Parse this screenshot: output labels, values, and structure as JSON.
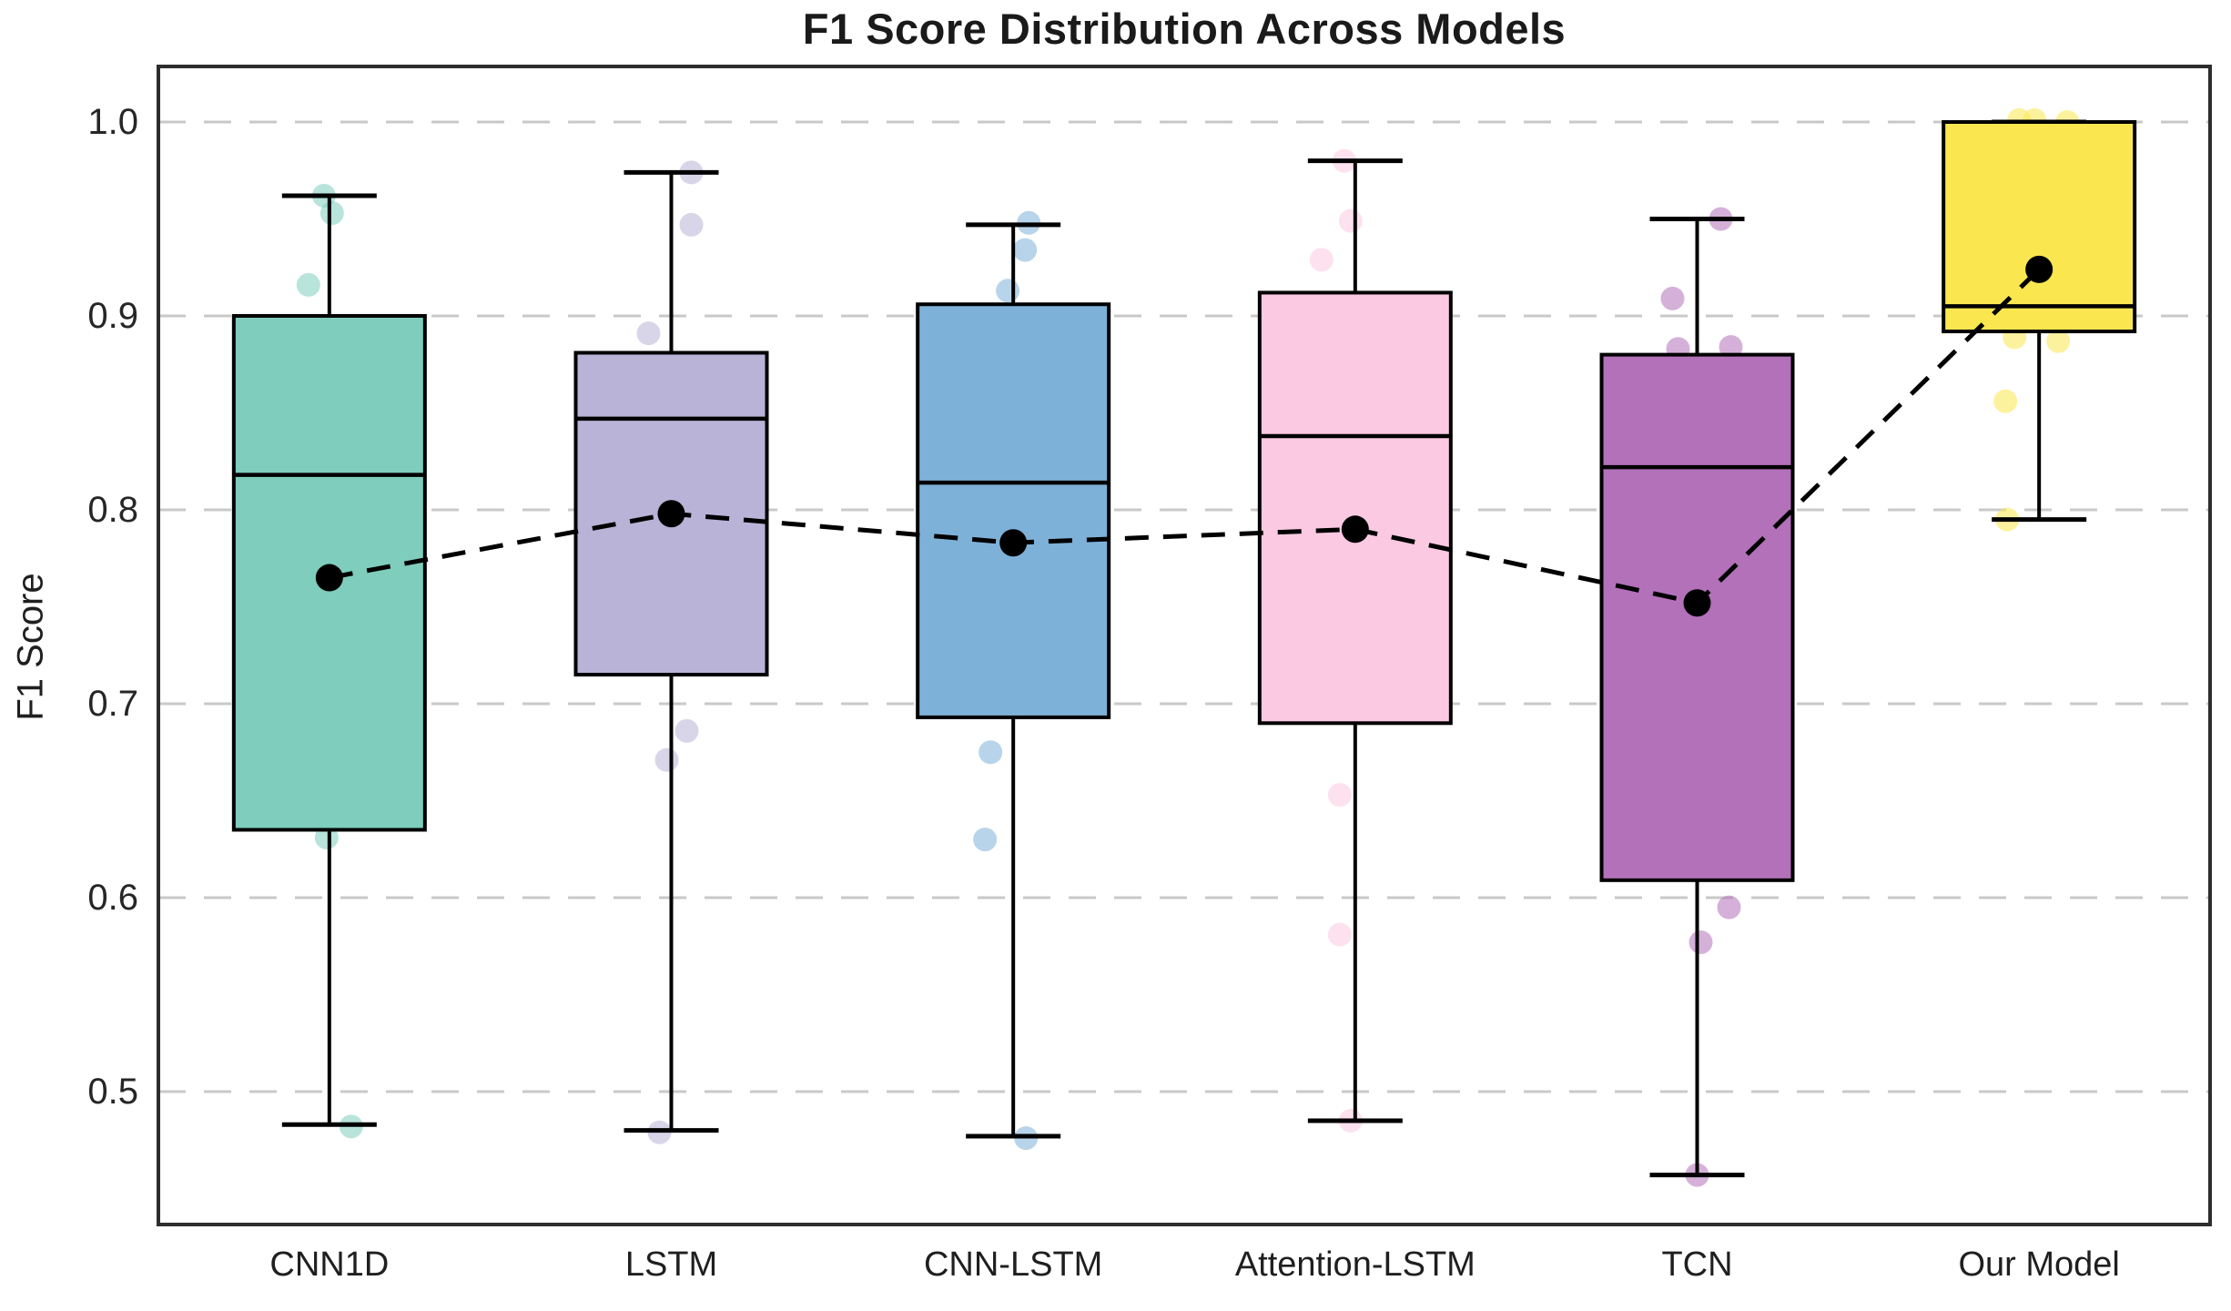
{
  "title": "F1 Score Distribution Across Models",
  "chart_data": {
    "type": "box",
    "title": "F1 Score Distribution Across Models",
    "xlabel": "",
    "ylabel": "F1 Score",
    "categories": [
      "CNN1D",
      "LSTM",
      "CNN-LSTM",
      "Attention-LSTM",
      "TCN",
      "Our Model"
    ],
    "ytick_labels": [
      "1.0",
      "0.9",
      "0.8",
      "0.7",
      "0.6",
      "0.5"
    ],
    "ytick_values": [
      1.0,
      0.9,
      0.8,
      0.7,
      0.6,
      0.5
    ],
    "ylim": [
      0.4315,
      1.0286
    ],
    "grid": "horizontal-dashed",
    "legend": "none",
    "colors": {
      "grid": "#c9c9c9",
      "spine": "#2d2d2d",
      "box_edge": "#000000",
      "median": "#000000",
      "whisker": "#000000",
      "mean_line": "#000000",
      "mean_dot": "#000000"
    },
    "series": [
      {
        "name": "CNN1D",
        "color": "#7ecdbd",
        "whisker_low": 0.483,
        "q1": 0.635,
        "median": 0.818,
        "q3": 0.9,
        "whisker_high": 0.962,
        "mean": 0.765,
        "points": [
          {
            "v": 0.962,
            "dx": -6
          },
          {
            "v": 0.953,
            "dx": 3
          },
          {
            "v": 0.916,
            "dx": -23
          },
          {
            "v": 0.631,
            "dx": -3
          },
          {
            "v": 0.482,
            "dx": 24
          }
        ]
      },
      {
        "name": "LSTM",
        "color": "#b9b3d7",
        "whisker_low": 0.48,
        "q1": 0.715,
        "median": 0.847,
        "q3": 0.881,
        "whisker_high": 0.974,
        "mean": 0.798,
        "points": [
          {
            "v": 0.974,
            "dx": 22
          },
          {
            "v": 0.947,
            "dx": 22
          },
          {
            "v": 0.891,
            "dx": -25
          },
          {
            "v": 0.686,
            "dx": 17
          },
          {
            "v": 0.671,
            "dx": -5
          },
          {
            "v": 0.479,
            "dx": -13
          }
        ]
      },
      {
        "name": "CNN-LSTM",
        "color": "#7eb1d8",
        "whisker_low": 0.477,
        "q1": 0.693,
        "median": 0.814,
        "q3": 0.906,
        "whisker_high": 0.947,
        "mean": 0.783,
        "points": [
          {
            "v": 0.948,
            "dx": 17
          },
          {
            "v": 0.934,
            "dx": 13
          },
          {
            "v": 0.913,
            "dx": -6
          },
          {
            "v": 0.675,
            "dx": -25
          },
          {
            "v": 0.63,
            "dx": -31
          },
          {
            "v": 0.476,
            "dx": 14
          }
        ]
      },
      {
        "name": "Attention-LSTM",
        "color": "#fbc9e2",
        "whisker_low": 0.485,
        "q1": 0.69,
        "median": 0.838,
        "q3": 0.912,
        "whisker_high": 0.98,
        "mean": 0.79,
        "points": [
          {
            "v": 0.98,
            "dx": -12
          },
          {
            "v": 0.949,
            "dx": -5
          },
          {
            "v": 0.929,
            "dx": -37
          },
          {
            "v": 0.653,
            "dx": -17
          },
          {
            "v": 0.581,
            "dx": -17
          },
          {
            "v": 0.485,
            "dx": -5
          }
        ]
      },
      {
        "name": "TCN",
        "color": "#b271b9",
        "whisker_low": 0.457,
        "q1": 0.609,
        "median": 0.822,
        "q3": 0.88,
        "whisker_high": 0.95,
        "mean": 0.752,
        "points": [
          {
            "v": 0.95,
            "dx": 26
          },
          {
            "v": 0.909,
            "dx": -27
          },
          {
            "v": 0.884,
            "dx": 37
          },
          {
            "v": 0.883,
            "dx": -21
          },
          {
            "v": 0.595,
            "dx": 35
          },
          {
            "v": 0.577,
            "dx": 4
          },
          {
            "v": 0.457,
            "dx": 0
          }
        ]
      },
      {
        "name": "Our Model",
        "color": "#fae74f",
        "whisker_low": 0.795,
        "q1": 0.892,
        "median": 0.905,
        "q3": 1.0,
        "whisker_high": 1.0,
        "mean": 0.924,
        "points": [
          {
            "v": 1.001,
            "dx": -22
          },
          {
            "v": 1.001,
            "dx": -5
          },
          {
            "v": 1.0,
            "dx": 31
          },
          {
            "v": 0.889,
            "dx": -27
          },
          {
            "v": 0.887,
            "dx": 21
          },
          {
            "v": 0.856,
            "dx": -37
          },
          {
            "v": 0.795,
            "dx": -35
          }
        ]
      }
    ],
    "mean_line": {
      "style": "dashed",
      "values": [
        0.765,
        0.798,
        0.783,
        0.79,
        0.752,
        0.924
      ]
    }
  }
}
